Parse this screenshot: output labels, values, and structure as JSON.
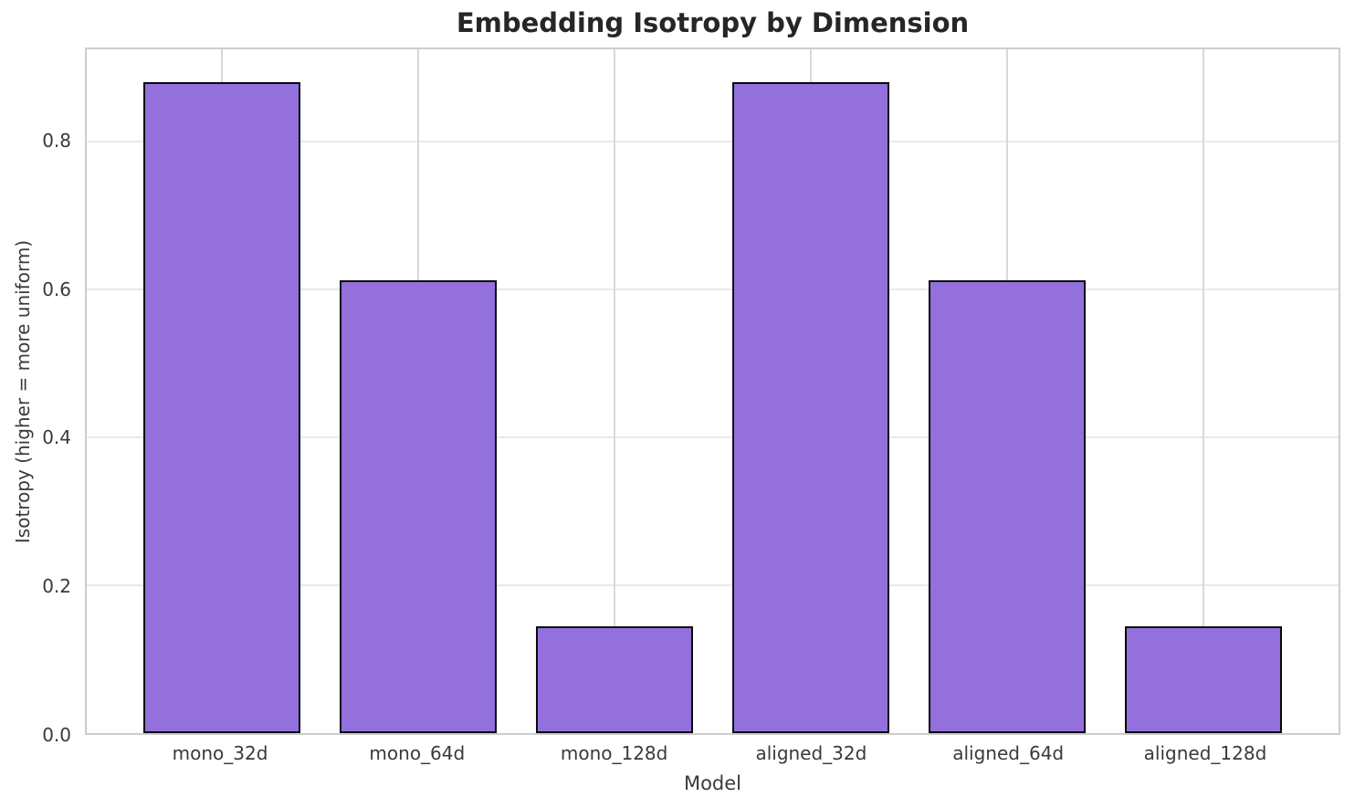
{
  "chart_data": {
    "type": "bar",
    "title": "Embedding Isotropy by Dimension",
    "xlabel": "Model",
    "ylabel": "Isotropy (higher = more uniform)",
    "categories": [
      "mono_32d",
      "mono_64d",
      "mono_128d",
      "aligned_32d",
      "aligned_64d",
      "aligned_128d"
    ],
    "values": [
      0.88,
      0.613,
      0.145,
      0.88,
      0.613,
      0.145
    ],
    "ylim": [
      0,
      0.925
    ],
    "yticks": [
      0.0,
      0.2,
      0.4,
      0.6,
      0.8
    ],
    "ytick_labels": [
      "0.0",
      "0.2",
      "0.4",
      "0.6",
      "0.8"
    ],
    "grid": "on",
    "legend": "none",
    "bar_color": "#9370DB",
    "bar_edge_color": "#0a0a0a",
    "grid_color_horizontal": "#e9e9e9",
    "grid_color_vertical": "#d8d8d8",
    "axes_frame_color": "#cdcdcd",
    "title_color": "#262626",
    "tick_label_color": "#3a3a3a"
  }
}
